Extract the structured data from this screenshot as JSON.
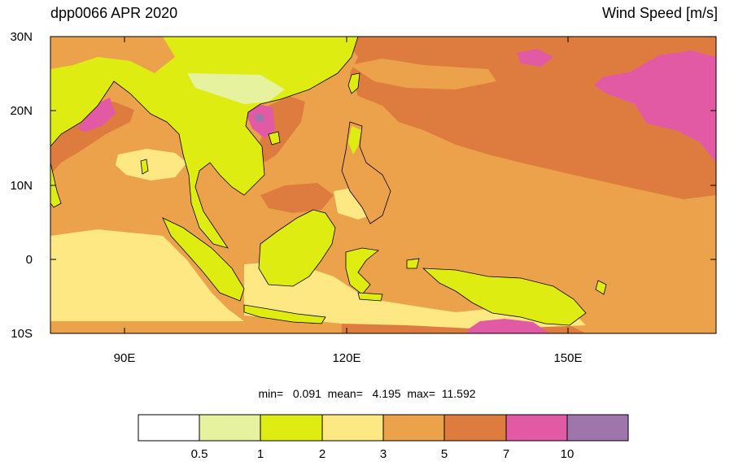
{
  "header": {
    "left_title": "dpp0066 APR 2020",
    "right_title": "Wind Speed [m/s]"
  },
  "axes": {
    "lat_labels": [
      "30N",
      "20N",
      "10N",
      "0",
      "10S"
    ],
    "lon_labels": [
      "90E",
      "120E",
      "150E"
    ],
    "lat_range": [
      -10,
      30
    ],
    "lon_range": [
      80,
      170
    ]
  },
  "stats": {
    "text": "min=   0.091  mean=   4.195  max=  11.592",
    "min": 0.091,
    "mean": 4.195,
    "max": 11.592
  },
  "colorbar": {
    "levels": [
      "0.5",
      "1",
      "2",
      "3",
      "5",
      "7",
      "10"
    ],
    "colors": [
      "#ffffff",
      "#e6f29e",
      "#dfec12",
      "#fde884",
      "#eca24a",
      "#dd7c3e",
      "#e35aa4",
      "#9e76ab"
    ]
  },
  "colors": {
    "background_field": "#eca24a",
    "strong_wind": "#dd7c3e",
    "weak_wind": "#fde884",
    "very_weak": "#dfec12",
    "high_wind": "#e35aa4",
    "extreme": "#9e76ab",
    "land_border": "#000000"
  }
}
